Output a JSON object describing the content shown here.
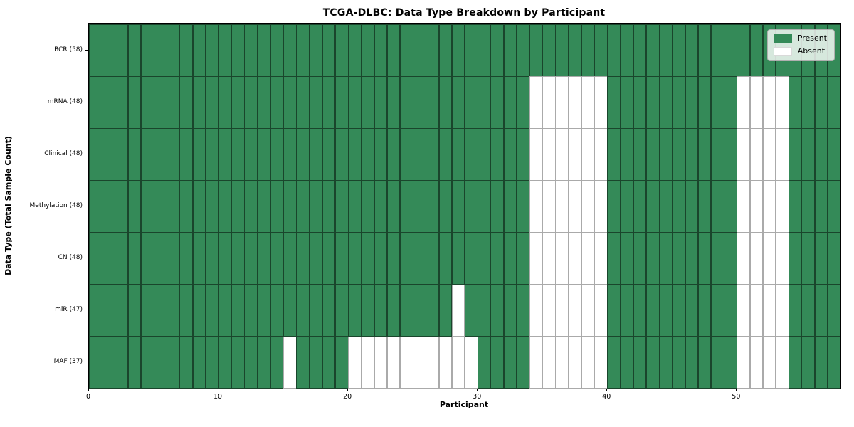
{
  "chart_data": {
    "type": "heatmap",
    "title": "TCGA-DLBC: Data Type Breakdown by Participant",
    "xlabel": "Participant",
    "ylabel": "Data Type (Total Sample Count)",
    "x_tick_labels": [
      "0",
      "10",
      "20",
      "30",
      "40",
      "50"
    ],
    "x_tick_values": [
      0,
      10,
      20,
      30,
      40,
      50
    ],
    "x_range": [
      0,
      58
    ],
    "n_participants": 58,
    "rows": [
      {
        "label": "BCR (58)",
        "present_count": 58,
        "absent_participants": []
      },
      {
        "label": "mRNA (48)",
        "present_count": 48,
        "absent_participants": [
          34,
          35,
          36,
          37,
          38,
          39,
          50,
          51,
          52,
          53
        ]
      },
      {
        "label": "Clinical (48)",
        "present_count": 48,
        "absent_participants": [
          34,
          35,
          36,
          37,
          38,
          39,
          50,
          51,
          52,
          53
        ]
      },
      {
        "label": "Methylation (48)",
        "present_count": 48,
        "absent_participants": [
          34,
          35,
          36,
          37,
          38,
          39,
          50,
          51,
          52,
          53
        ]
      },
      {
        "label": "CN (48)",
        "present_count": 48,
        "absent_participants": [
          34,
          35,
          36,
          37,
          38,
          39,
          50,
          51,
          52,
          53
        ]
      },
      {
        "label": "miR (47)",
        "present_count": 47,
        "absent_participants": [
          28,
          34,
          35,
          36,
          37,
          38,
          39,
          50,
          51,
          52,
          53
        ]
      },
      {
        "label": "MAF (37)",
        "present_count": 37,
        "absent_participants": [
          15,
          20,
          21,
          22,
          23,
          24,
          25,
          26,
          27,
          28,
          29,
          34,
          35,
          36,
          37,
          38,
          39,
          50,
          51,
          52,
          53
        ]
      }
    ],
    "legend": {
      "position": "upper right",
      "entries": [
        {
          "label": "Present",
          "color": "#348a58"
        },
        {
          "label": "Absent",
          "color": "#ffffff"
        }
      ]
    },
    "colors": {
      "present": "#348a58",
      "absent": "#ffffff"
    },
    "grid": true
  }
}
